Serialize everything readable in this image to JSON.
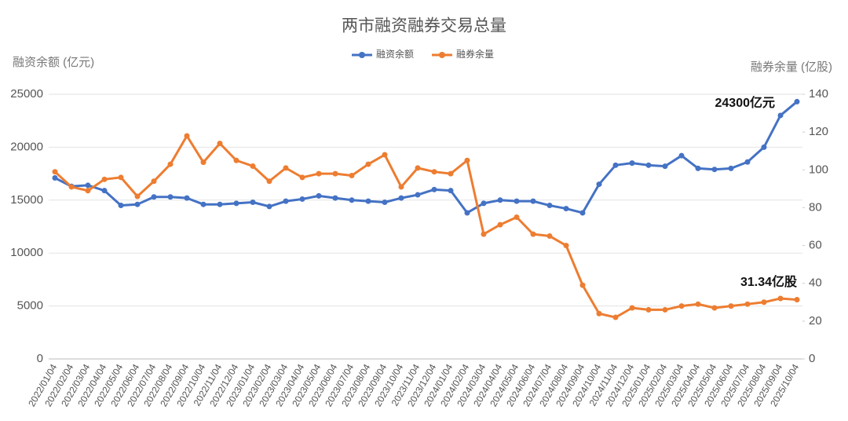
{
  "chart_data": {
    "type": "line",
    "title": "两市融资融券交易总量",
    "ylabel": "融资余额 (亿元)",
    "y2label": "融券余量 (亿股)",
    "categories": [
      "2022/01/04",
      "2022/02/04",
      "2022/03/04",
      "2022/04/04",
      "2022/05/04",
      "2022/06/04",
      "2022/07/04",
      "2022/08/04",
      "2022/09/04",
      "2022/10/04",
      "2022/11/04",
      "2022/12/04",
      "2023/01/04",
      "2023/02/04",
      "2023/03/04",
      "2023/04/04",
      "2023/05/04",
      "2023/06/04",
      "2023/07/04",
      "2023/08/04",
      "2023/09/04",
      "2023/10/04",
      "2023/11/04",
      "2023/12/04",
      "2024/01/04",
      "2024/02/04",
      "2024/03/04",
      "2024/04/04",
      "2024/05/04",
      "2024/06/04",
      "2024/07/04",
      "2024/08/04",
      "2024/09/04",
      "2024/10/04",
      "2024/11/04",
      "2024/12/04",
      "2025/01/04",
      "2025/02/04",
      "2025/03/04",
      "2025/04/04",
      "2025/05/04",
      "2025/06/04",
      "2025/07/04",
      "2025/08/04",
      "2025/09/04",
      "2025/10/04"
    ],
    "series": [
      {
        "name": "融资余额",
        "color": "#4472c4",
        "values": [
          17100,
          16300,
          16400,
          15900,
          14500,
          14600,
          15300,
          15300,
          15200,
          14600,
          14600,
          14700,
          14800,
          14400,
          14900,
          15100,
          15400,
          15200,
          15000,
          14900,
          14800,
          15200,
          15500,
          16000,
          15900,
          13800,
          14700,
          15000,
          14900,
          14900,
          14500,
          14200,
          13800,
          16500,
          18300,
          18500,
          18300,
          18200,
          19200,
          18000,
          17900,
          18000,
          18600,
          20000,
          23000,
          24300
        ]
      },
      {
        "name": "融券余量",
        "color": "#ed7d31",
        "axis": "y2",
        "values": [
          99,
          91,
          89,
          95,
          96,
          86,
          94,
          103,
          118,
          104,
          114,
          105,
          102,
          94,
          101,
          96,
          98,
          98,
          97,
          103,
          108,
          91,
          101,
          99,
          98,
          105,
          66,
          71,
          75,
          66,
          65,
          60,
          39,
          24,
          22,
          27,
          26,
          26,
          28,
          29,
          27,
          28,
          29,
          30,
          32,
          31.34
        ]
      }
    ],
    "ylim": [
      0,
      25000
    ],
    "yticks": [
      0,
      5000,
      10000,
      15000,
      20000,
      25000
    ],
    "y2lim": [
      0,
      140
    ],
    "y2ticks": [
      0,
      20,
      40,
      60,
      80,
      100,
      120,
      140
    ],
    "grid": true,
    "legend": "top",
    "annotations": [
      "24300亿元",
      "31.34亿股"
    ]
  }
}
